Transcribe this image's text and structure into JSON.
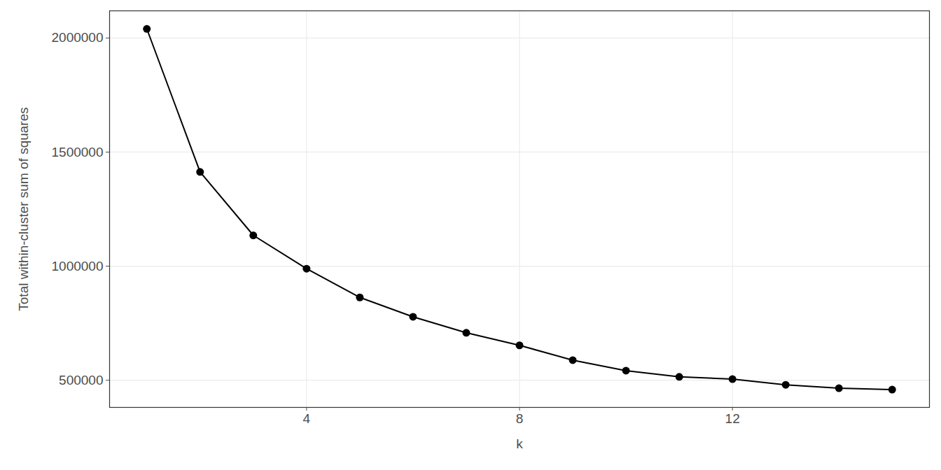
{
  "chart_data": {
    "type": "line",
    "x_label": "k",
    "y_label": "Total within-cluster sum of squares",
    "x": [
      1,
      2,
      3,
      4,
      5,
      6,
      7,
      8,
      9,
      10,
      11,
      12,
      13,
      14,
      15
    ],
    "values": [
      2040000,
      1413000,
      1135000,
      989000,
      863000,
      778000,
      708000,
      653000,
      588000,
      542000,
      515000,
      505000,
      480000,
      465000,
      459000
    ],
    "color": "#000000",
    "marker": "circle",
    "xlim": [
      0.3,
      15.7
    ],
    "ylim": [
      381000,
      2119000
    ],
    "xticks": [
      4,
      8,
      12
    ],
    "yticks": [
      500000,
      1000000,
      1500000,
      2000000
    ],
    "grid": true
  }
}
